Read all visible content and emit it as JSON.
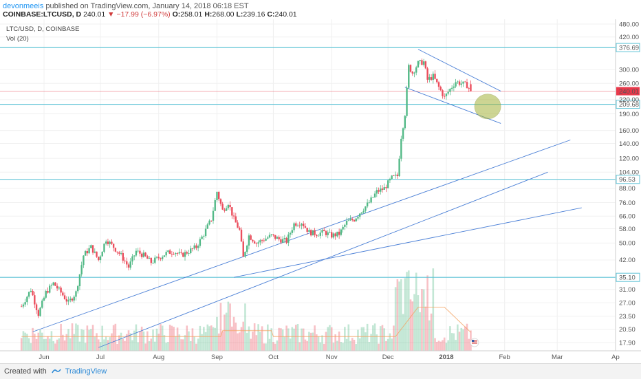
{
  "header": {
    "author": "devonmeeis",
    "published_text": "published on TradingView.com, January 14, 2018 06:18 EST",
    "symbol": "COINBASE:LTCUSD, D",
    "last": "240.01",
    "change": "−17.99 (−6.97%)",
    "o_label": "O:",
    "o_value": "258.01",
    "h_label": "H:",
    "h_value": "268.00",
    "l_label": "L:",
    "l_value": "239.16",
    "c_label": "C:",
    "c_value": "240.01"
  },
  "legend": {
    "title": "LTC/USD, D, COINBASE",
    "volume": "Vol (20)"
  },
  "footer": {
    "created_with": "Created with",
    "brand": "TradingView"
  },
  "colors": {
    "up": "#53b987",
    "down": "#eb4d5c",
    "hline": "#5fc3d6",
    "trend": "#4a7fd6",
    "current_price": "#e8394b",
    "circle_fill": "#a6b43c",
    "volume_ma": "#f4a262"
  },
  "chart_data": {
    "type": "candlestick",
    "title": "LTC/USD, D, COINBASE",
    "y_scale": "log",
    "ylim": [
      16,
      490
    ],
    "y_ticks": [
      17.9,
      20.5,
      23.5,
      27.0,
      31.0,
      35.1,
      42.0,
      50.0,
      58.0,
      66.0,
      76.0,
      88.0,
      96.53,
      104.0,
      120.0,
      140.0,
      160.0,
      190.0,
      209.68,
      220.0,
      240.01,
      260.0,
      300.0,
      376.69,
      420.0,
      480.0
    ],
    "y_tick_labels": [
      "17.90",
      "20.50",
      "23.50",
      "27.00",
      "31.00",
      "35.10",
      "42.00",
      "50.00",
      "58.00",
      "66.00",
      "76.00",
      "88.00",
      "96.53",
      "104.00",
      "120.00",
      "140.00",
      "160.00",
      "190.00",
      "209.68",
      "220.00",
      "240.01",
      "260.00",
      "300.00",
      "376.69",
      "420.00",
      "480.00"
    ],
    "x_tick_labels": [
      "Jun",
      "Jul",
      "Aug",
      "Sep",
      "Oct",
      "Nov",
      "Dec",
      "2018",
      "Feb",
      "Mar",
      "Ap"
    ],
    "x_ticks": [
      "2017-06-01",
      "2017-07-01",
      "2017-08-01",
      "2017-09-01",
      "2017-10-01",
      "2017-11-01",
      "2017-12-01",
      "2018-01-01",
      "2018-02-01",
      "2018-03-01",
      "2018-04-01"
    ],
    "price_points": [
      [
        "2017-05-20",
        26
      ],
      [
        "2017-05-25",
        31
      ],
      [
        "2017-05-29",
        24
      ],
      [
        "2017-06-02",
        30
      ],
      [
        "2017-06-06",
        33
      ],
      [
        "2017-06-10",
        30
      ],
      [
        "2017-06-14",
        27
      ],
      [
        "2017-06-18",
        30
      ],
      [
        "2017-06-22",
        44
      ],
      [
        "2017-06-26",
        48
      ],
      [
        "2017-06-30",
        42
      ],
      [
        "2017-07-04",
        52
      ],
      [
        "2017-07-08",
        48
      ],
      [
        "2017-07-12",
        44
      ],
      [
        "2017-07-16",
        39
      ],
      [
        "2017-07-20",
        46
      ],
      [
        "2017-07-24",
        44
      ],
      [
        "2017-07-28",
        41
      ],
      [
        "2017-08-01",
        43
      ],
      [
        "2017-08-05",
        45
      ],
      [
        "2017-08-09",
        46
      ],
      [
        "2017-08-13",
        44
      ],
      [
        "2017-08-17",
        46
      ],
      [
        "2017-08-21",
        48
      ],
      [
        "2017-08-25",
        55
      ],
      [
        "2017-08-29",
        64
      ],
      [
        "2017-09-01",
        85
      ],
      [
        "2017-09-04",
        70
      ],
      [
        "2017-09-07",
        76
      ],
      [
        "2017-09-10",
        64
      ],
      [
        "2017-09-13",
        57
      ],
      [
        "2017-09-15",
        43
      ],
      [
        "2017-09-18",
        54
      ],
      [
        "2017-09-22",
        50
      ],
      [
        "2017-09-26",
        52
      ],
      [
        "2017-09-30",
        54
      ],
      [
        "2017-10-04",
        52
      ],
      [
        "2017-10-08",
        51
      ],
      [
        "2017-10-12",
        61
      ],
      [
        "2017-10-16",
        62
      ],
      [
        "2017-10-20",
        56
      ],
      [
        "2017-10-24",
        55
      ],
      [
        "2017-10-28",
        56
      ],
      [
        "2017-11-01",
        54
      ],
      [
        "2017-11-05",
        55
      ],
      [
        "2017-11-09",
        62
      ],
      [
        "2017-11-13",
        64
      ],
      [
        "2017-11-17",
        70
      ],
      [
        "2017-11-21",
        76
      ],
      [
        "2017-11-25",
        85
      ],
      [
        "2017-11-29",
        88
      ],
      [
        "2017-12-03",
        98
      ],
      [
        "2017-12-06",
        100
      ],
      [
        "2017-12-08",
        150
      ],
      [
        "2017-12-10",
        190
      ],
      [
        "2017-12-12",
        310
      ],
      [
        "2017-12-14",
        290
      ],
      [
        "2017-12-17",
        320
      ],
      [
        "2017-12-20",
        325
      ],
      [
        "2017-12-22",
        270
      ],
      [
        "2017-12-25",
        280
      ],
      [
        "2017-12-28",
        250
      ],
      [
        "2017-12-31",
        225
      ],
      [
        "2018-01-03",
        245
      ],
      [
        "2018-01-06",
        265
      ],
      [
        "2018-01-09",
        260
      ],
      [
        "2018-01-12",
        255
      ],
      [
        "2018-01-14",
        240.01
      ]
    ],
    "horizontal_levels": [
      376.69,
      209.68,
      96.53,
      35.1
    ],
    "current_price": 240.01,
    "volume_series_name": "Vol (20)"
  }
}
